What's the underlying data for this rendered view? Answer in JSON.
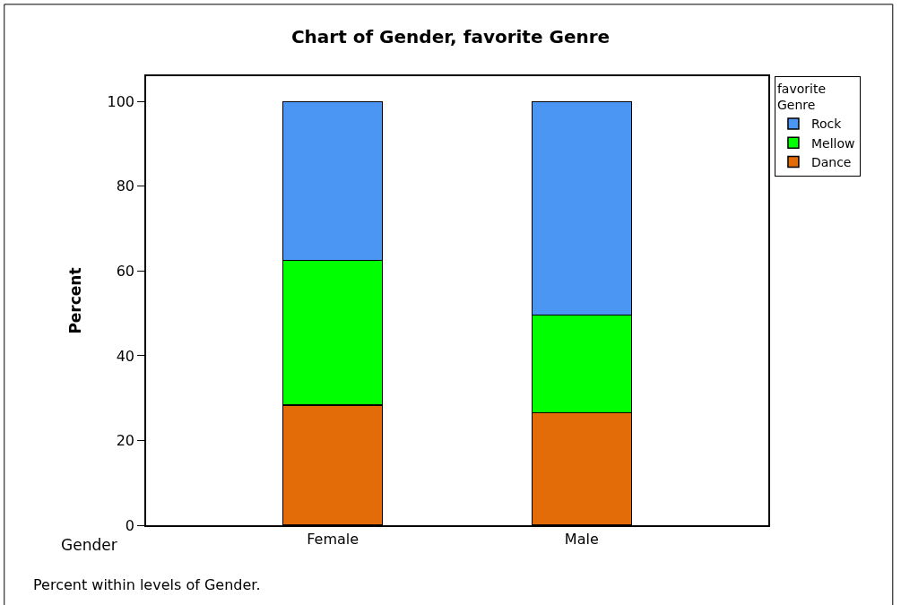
{
  "chart_data": {
    "type": "bar",
    "title": "Chart of Gender, favorite Genre",
    "xlabel": "Gender",
    "ylabel": "Percent",
    "legend_title": "favorite Genre",
    "categories": [
      "Female",
      "Male"
    ],
    "stacked": true,
    "series": [
      {
        "name": "Dance",
        "color": "#e36c09",
        "values": [
          28.4,
          26.6
        ]
      },
      {
        "name": "Mellow",
        "color": "#00ff00",
        "values": [
          34.1,
          23.0
        ]
      },
      {
        "name": "Rock",
        "color": "#4a96f2",
        "values": [
          37.5,
          50.4
        ]
      }
    ],
    "ylim": [
      0,
      106
    ],
    "yticks": [
      0,
      20,
      40,
      60,
      80,
      100
    ],
    "legend": "top right",
    "annotations": [
      "Percent within levels of Gender."
    ]
  }
}
